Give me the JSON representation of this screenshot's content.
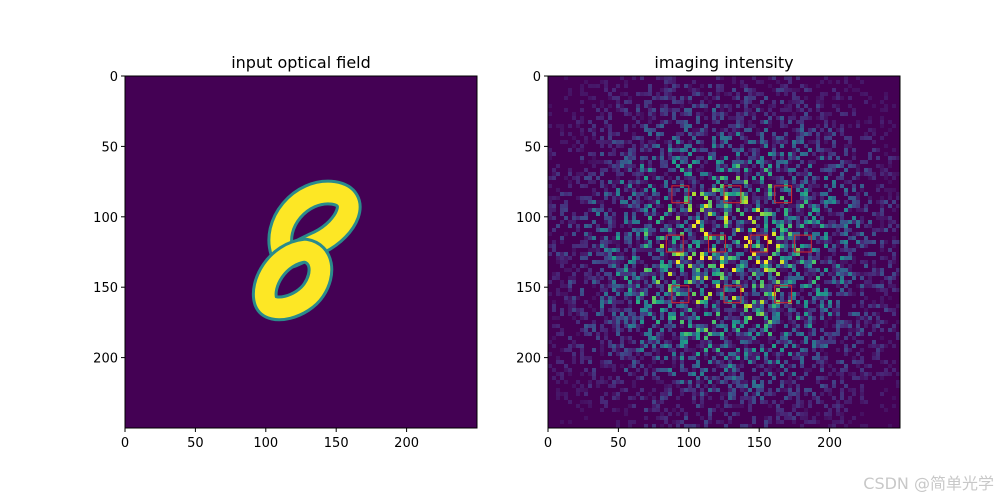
{
  "chart_data": [
    {
      "type": "heatmap",
      "title": "input optical field",
      "xlim": [
        0,
        250
      ],
      "ylim": [
        0,
        250
      ],
      "y_inverted": true,
      "x_ticks": [
        0,
        50,
        100,
        150,
        200
      ],
      "y_ticks": [
        0,
        50,
        100,
        150,
        200
      ],
      "colormap": "viridis",
      "background_color": "#440154",
      "foreground_color": "#fde725",
      "content": "handwritten digit 8",
      "digit_extent": {
        "x": [
          95,
          165
        ],
        "y": [
          78,
          168
        ]
      }
    },
    {
      "type": "heatmap",
      "title": "imaging intensity",
      "xlim": [
        0,
        250
      ],
      "ylim": [
        0,
        250
      ],
      "y_inverted": true,
      "x_ticks": [
        0,
        50,
        100,
        150,
        200
      ],
      "y_ticks": [
        0,
        50,
        100,
        150,
        200
      ],
      "colormap": "viridis",
      "background_color": "#440154",
      "content": "speckle intensity pattern",
      "detector_box_color": "#d62728",
      "detector_box_size": 12,
      "detector_boxes": [
        {
          "cx": 94,
          "cy": 84
        },
        {
          "cx": 131,
          "cy": 84
        },
        {
          "cx": 167,
          "cy": 84
        },
        {
          "cx": 90,
          "cy": 119
        },
        {
          "cx": 120,
          "cy": 119
        },
        {
          "cx": 150,
          "cy": 119
        },
        {
          "cx": 181,
          "cy": 119
        },
        {
          "cx": 94,
          "cy": 155
        },
        {
          "cx": 131,
          "cy": 155
        },
        {
          "cx": 167,
          "cy": 155
        }
      ]
    }
  ],
  "watermark": "CSDN @简单光学"
}
